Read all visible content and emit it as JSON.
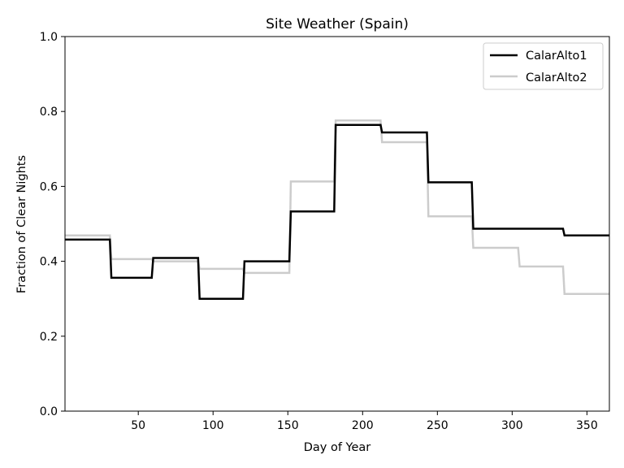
{
  "chart_data": {
    "type": "line",
    "style": "step",
    "title": "Site Weather (Spain)",
    "xlabel": "Day of Year",
    "ylabel": "Fraction of Clear Nights",
    "xlim": [
      1,
      365
    ],
    "ylim": [
      0.0,
      1.0
    ],
    "x_ticks": [
      50,
      100,
      150,
      200,
      250,
      300,
      350
    ],
    "y_ticks": [
      0.0,
      0.2,
      0.4,
      0.6,
      0.8,
      1.0
    ],
    "y_tick_labels": [
      "0.0",
      "0.2",
      "0.4",
      "0.6",
      "0.8",
      "1.0"
    ],
    "grid": false,
    "legend_position": "top-right",
    "x": [
      1,
      31,
      32,
      59,
      60,
      90,
      91,
      120,
      121,
      151,
      152,
      181,
      182,
      212,
      213,
      243,
      244,
      273,
      274,
      304,
      305,
      334,
      335,
      365
    ],
    "series": [
      {
        "name": "CalarAlto1",
        "color": "#000000",
        "values": [
          0.458,
          0.458,
          0.356,
          0.356,
          0.409,
          0.409,
          0.3,
          0.3,
          0.4,
          0.4,
          0.533,
          0.533,
          0.764,
          0.764,
          0.744,
          0.744,
          0.611,
          0.611,
          0.487,
          0.487,
          0.487,
          0.487,
          0.469,
          0.469
        ]
      },
      {
        "name": "CalarAlto2",
        "color": "#cccccc",
        "values": [
          0.469,
          0.469,
          0.406,
          0.406,
          0.4,
          0.4,
          0.38,
          0.38,
          0.369,
          0.369,
          0.613,
          0.613,
          0.776,
          0.776,
          0.718,
          0.718,
          0.52,
          0.52,
          0.436,
          0.436,
          0.386,
          0.386,
          0.313,
          0.313
        ]
      }
    ]
  }
}
